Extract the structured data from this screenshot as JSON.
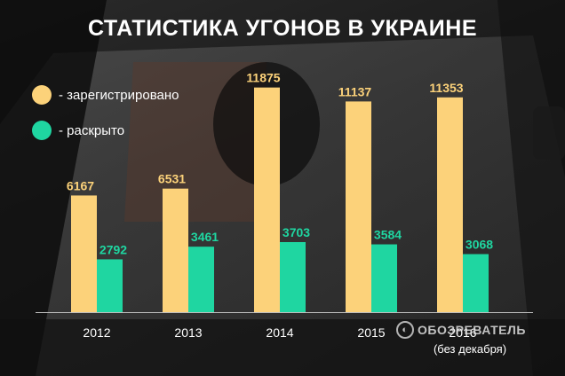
{
  "chart_data": {
    "type": "bar",
    "title": "СТАТИСТИКА УГОНОВ В УКРАИНЕ",
    "categories": [
      "2012",
      "2013",
      "2014",
      "2015",
      "2016"
    ],
    "category_sublabels": [
      "",
      "",
      "",
      "",
      "(без декабря)"
    ],
    "series": [
      {
        "name": "- зарегистрировано",
        "color": "#fcd27a",
        "values": [
          6167,
          6531,
          11875,
          11137,
          11353
        ]
      },
      {
        "name": "- раскрыто",
        "color": "#1fd6a1",
        "values": [
          2792,
          3461,
          3703,
          3584,
          3068
        ]
      }
    ],
    "ylim": [
      0,
      12000
    ],
    "grid": false,
    "legend_position": "top-left",
    "xlabel": "",
    "ylabel": ""
  },
  "watermark": {
    "text": "ОБОЗРЕВАТЕЛЬ",
    "icon": "globe-icon"
  }
}
